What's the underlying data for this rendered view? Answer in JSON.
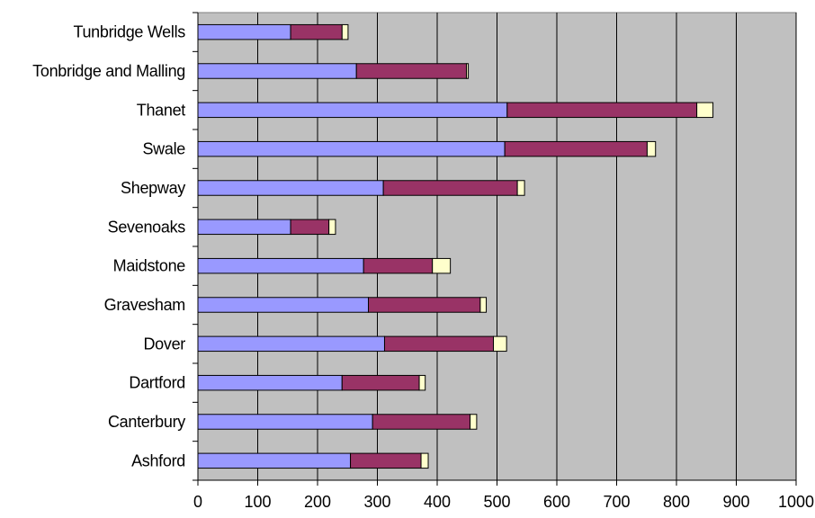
{
  "chart_data": {
    "type": "bar",
    "orientation": "horizontal",
    "stacked": true,
    "title": "",
    "xlabel": "",
    "ylabel": "",
    "categories": [
      "Ashford",
      "Canterbury",
      "Dartford",
      "Dover",
      "Gravesham",
      "Maidstone",
      "Sevenoaks",
      "Shepway",
      "Swale",
      "Thanet",
      "Tonbridge and Malling",
      "Tunbridge Wells"
    ],
    "series": [
      {
        "color": "#9999ff",
        "values": [
          255,
          292,
          241,
          312,
          285,
          277,
          155,
          310,
          513,
          517,
          265,
          155
        ]
      },
      {
        "color": "#993366",
        "values": [
          118,
          163,
          129,
          182,
          187,
          115,
          64,
          224,
          238,
          317,
          184,
          86
        ]
      },
      {
        "color": "#ffffcc",
        "values": [
          12,
          11,
          10,
          22,
          10,
          30,
          11,
          12,
          14,
          27,
          3,
          10
        ]
      }
    ],
    "xlim": [
      0,
      1000
    ],
    "x_ticks": [
      0,
      100,
      200,
      300,
      400,
      500,
      600,
      700,
      800,
      900,
      1000
    ],
    "grid": true,
    "plot_background": "#c0c0c0",
    "legend": "none"
  }
}
